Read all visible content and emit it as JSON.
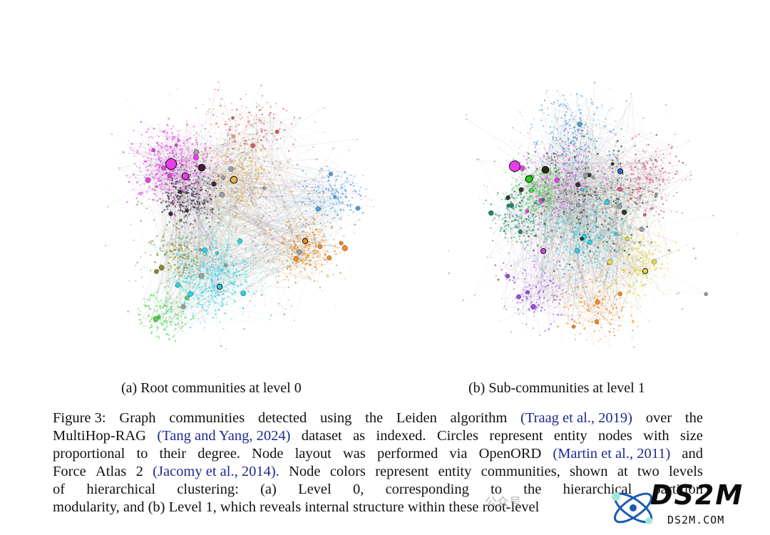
{
  "figure": {
    "subcaptions": {
      "a": "(a) Root communities at level 0",
      "b": "(b) Sub-communities at level 1"
    },
    "caption_lines": [
      [
        "Figure 3:",
        "Graph",
        "communities",
        "detected",
        "using",
        "the",
        "Leiden",
        "algorithm",
        {
          "cite": "(Traag et al., 2019)"
        },
        "over",
        "the"
      ],
      [
        "MultiHop-RAG",
        {
          "cite": "(Tang and Yang, 2024)"
        },
        "dataset",
        "as",
        "indexed.",
        "Circles",
        "represent",
        "entity",
        "nodes",
        "with",
        "size"
      ],
      [
        "proportional",
        "to",
        "their",
        "degree.",
        "Node",
        "layout",
        "was",
        "performed",
        "via",
        "OpenORD",
        {
          "cite": "(Martin et al., 2011)"
        },
        "and"
      ],
      [
        "Force",
        "Atlas",
        "2",
        {
          "cite": "(Jacomy et al., 2014)."
        },
        "Node",
        "colors",
        "represent",
        "entity",
        "communities,",
        "shown",
        "at",
        "two",
        "levels"
      ],
      [
        "of",
        "hierarchical",
        "clustering:",
        "(a)",
        "Level",
        "0,",
        "corresponding",
        "to",
        "the",
        "hierarchical",
        "partition"
      ],
      [
        "modularity, and (b) Level 1, which reveals internal structure within these root-level"
      ]
    ]
  },
  "watermark": {
    "wechat": "公众号",
    "brand": "DS2M",
    "domain": "DS2M.COM"
  },
  "graph_a": {
    "communities": [
      {
        "color": "#e83ee8",
        "count": 520
      },
      {
        "color": "#29d3e6",
        "count": 520
      },
      {
        "color": "#f08c1e",
        "count": 340
      },
      {
        "color": "#8a8a2a",
        "count": 200
      },
      {
        "color": "#52d652",
        "count": 200
      },
      {
        "color": "#e8b44a",
        "count": 300
      },
      {
        "color": "#3a2a3a",
        "count": 320
      },
      {
        "color": "#9aa0a8",
        "count": 460
      },
      {
        "color": "#4aa0e0",
        "count": 200
      },
      {
        "color": "#e05a5a",
        "count": 160
      }
    ],
    "hubs": [
      {
        "color": "#e83ee8",
        "size": "large"
      },
      {
        "color": "#e83ee8",
        "size": "medium"
      },
      {
        "color": "#4a1a3a",
        "size": "medium"
      },
      {
        "color": "#e8b44a",
        "size": "medium"
      },
      {
        "color": "#f08c1e",
        "size": "small"
      },
      {
        "color": "#29d3e6",
        "size": "small"
      }
    ]
  },
  "graph_b": {
    "communities": [
      {
        "color": "#e83ee8",
        "count": 220
      },
      {
        "color": "#29d3e6",
        "count": 300
      },
      {
        "color": "#f08c1e",
        "count": 200
      },
      {
        "color": "#52d652",
        "count": 240
      },
      {
        "color": "#e8d84a",
        "count": 200
      },
      {
        "color": "#2a3a2a",
        "count": 360
      },
      {
        "color": "#4aa0e0",
        "count": 220
      },
      {
        "color": "#e05a8a",
        "count": 200
      },
      {
        "color": "#9aa0a8",
        "count": 420
      },
      {
        "color": "#9a4ae0",
        "count": 160
      },
      {
        "color": "#1e8a6a",
        "count": 200
      }
    ],
    "hubs": [
      {
        "color": "#e83ee8",
        "size": "large"
      },
      {
        "color": "#1fd31f",
        "size": "medium"
      },
      {
        "color": "#2a2a10",
        "size": "medium"
      },
      {
        "color": "#2a6ae0",
        "size": "small"
      },
      {
        "color": "#e8d84a",
        "size": "small"
      },
      {
        "color": "#e83ee8",
        "size": "small"
      }
    ]
  }
}
